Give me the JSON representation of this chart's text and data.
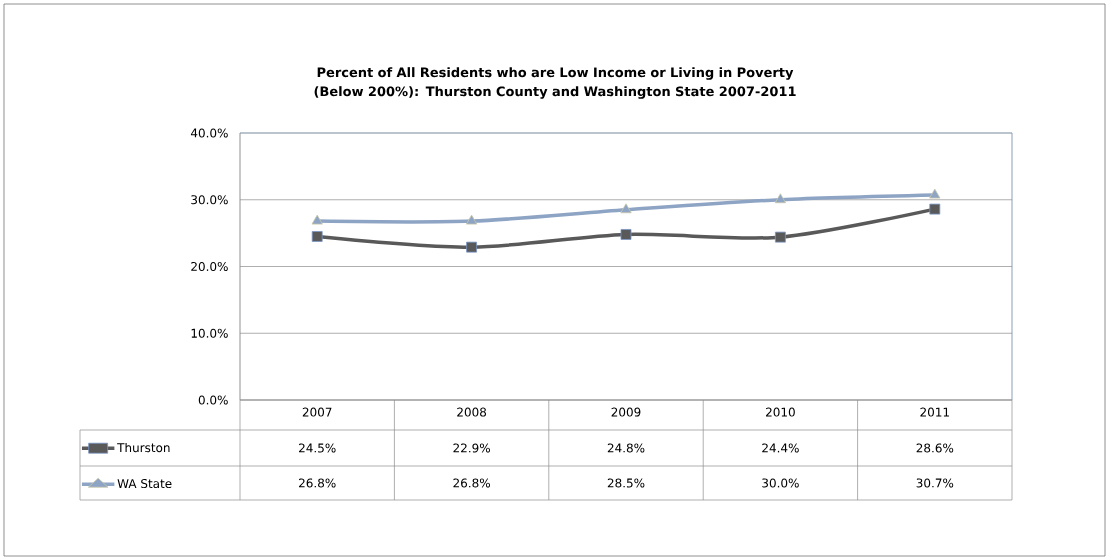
{
  "chart_data": {
    "type": "line",
    "title": "Percent of All Residents who are Low Income or Living in Poverty (Below 200%): Thurston County and Washington State 2007-2011",
    "categories": [
      "2007",
      "2008",
      "2009",
      "2010",
      "2011"
    ],
    "series": [
      {
        "name": "Thurston",
        "color": "#595959",
        "marker": "square",
        "values": [
          24.5,
          22.9,
          24.8,
          24.4,
          28.6
        ],
        "value_labels": [
          "24.5%",
          "22.9%",
          "24.8%",
          "24.4%",
          "28.6%"
        ]
      },
      {
        "name": "WA State",
        "color": "#8ea4c4",
        "marker": "triangle",
        "values": [
          26.8,
          26.8,
          28.5,
          30.0,
          30.7
        ],
        "value_labels": [
          "26.8%",
          "26.8%",
          "28.5%",
          "30.0%",
          "30.7%"
        ]
      }
    ],
    "ylim": [
      0,
      40
    ],
    "yticks": [
      {
        "value": 0,
        "label": "0.0%"
      },
      {
        "value": 10,
        "label": "10.0%"
      },
      {
        "value": 20,
        "label": "20.0%"
      },
      {
        "value": 30,
        "label": "30.0%"
      },
      {
        "value": 40,
        "label": "40.0%"
      }
    ],
    "grid": "y",
    "legend": "bottom"
  }
}
